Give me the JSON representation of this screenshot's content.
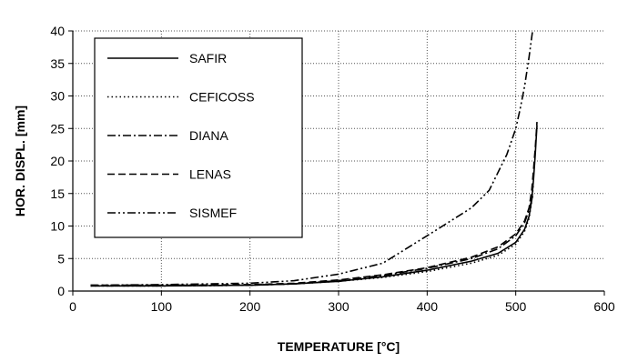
{
  "chart_data": {
    "type": "line",
    "xlabel": "TEMPERATURE [°C]",
    "ylabel": "HOR. DISPL. [mm]",
    "xlim": [
      0,
      600
    ],
    "ylim": [
      0,
      40
    ],
    "xticks": [
      "0",
      "100",
      "200",
      "300",
      "400",
      "500",
      "600"
    ],
    "yticks": [
      "0",
      "5",
      "10",
      "15",
      "20",
      "25",
      "30",
      "35",
      "40"
    ],
    "grid": "dotted",
    "legend_position": "top-left",
    "series": [
      {
        "name": "SAFIR",
        "dash": "solid",
        "x": [
          20,
          100,
          200,
          250,
          300,
          350,
          400,
          450,
          480,
          500,
          510,
          515,
          518,
          520,
          522,
          524
        ],
        "y": [
          0.8,
          0.8,
          0.9,
          1.1,
          1.5,
          2.2,
          3.2,
          4.6,
          5.8,
          7.5,
          9.5,
          11.5,
          14,
          17,
          21,
          25.5
        ]
      },
      {
        "name": "CEFICOSS",
        "dash": "dotted",
        "x": [
          20,
          100,
          200,
          250,
          300,
          350,
          400,
          450,
          480,
          500,
          510,
          515,
          518,
          520
        ],
        "y": [
          0.8,
          0.8,
          0.9,
          1.1,
          1.5,
          2.1,
          3.0,
          4.3,
          5.5,
          7.2,
          9.2,
          11.2,
          13.8,
          16.5
        ]
      },
      {
        "name": "DIANA",
        "dash": "dash-dot",
        "x": [
          20,
          100,
          200,
          250,
          300,
          350,
          400,
          450,
          480,
          500,
          510,
          515,
          520
        ],
        "y": [
          0.8,
          0.8,
          0.9,
          1.1,
          1.6,
          2.4,
          3.5,
          5.0,
          6.5,
          8.5,
          10.5,
          12.5,
          15
        ]
      },
      {
        "name": "LENAS",
        "dash": "dashed",
        "x": [
          20,
          100,
          200,
          250,
          300,
          350,
          400,
          450,
          480,
          500,
          510,
          515,
          518,
          520,
          522,
          524
        ],
        "y": [
          0.9,
          0.9,
          1.0,
          1.2,
          1.7,
          2.5,
          3.6,
          5.2,
          6.8,
          8.8,
          10.8,
          12.8,
          15.5,
          18.5,
          22,
          26
        ]
      },
      {
        "name": "SISMEF",
        "dash": "dash-dot-dot",
        "x": [
          20,
          100,
          200,
          250,
          300,
          350,
          400,
          450,
          470,
          490,
          500,
          505,
          510,
          515,
          520
        ],
        "y": [
          0.9,
          1.0,
          1.2,
          1.6,
          2.6,
          4.3,
          8.5,
          12.8,
          15.5,
          21,
          25,
          28,
          31.5,
          36,
          41
        ]
      }
    ]
  }
}
